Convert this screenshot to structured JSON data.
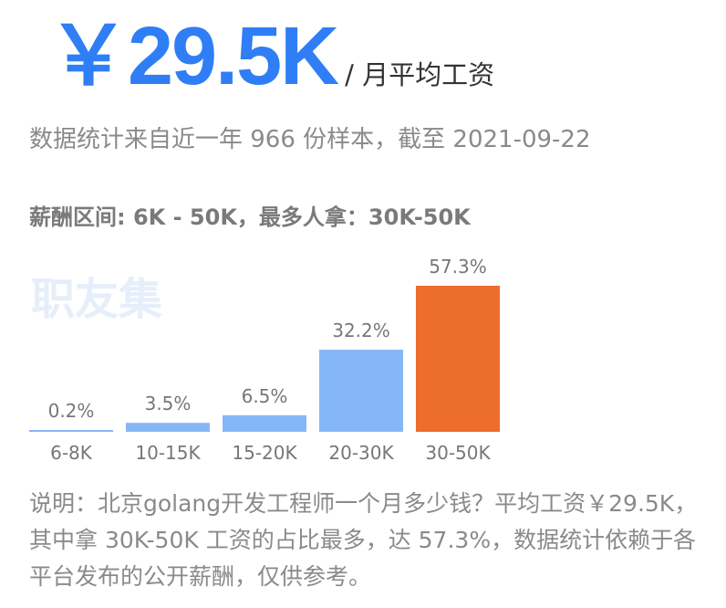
{
  "header": {
    "salary": "￥29.5K",
    "unit_label": "/ 月平均工资"
  },
  "meta_text": "数据统计来自近一年 966 份样本，截至 2021-09-22",
  "range_text": "薪酬区间: 6K - 50K，最多人拿：30K-50K",
  "watermark": "职友集",
  "description": "说明：北京golang开发工程师一个月多少钱？平均工资￥29.5K，其中拿 30K-50K 工资的占比最多，达 57.3%，数据统计依赖于各平台发布的公开薪酬，仅供参考。",
  "colors": {
    "salary": "#2f7ef5",
    "bar": "#85b6f8",
    "highlight_bar": "#ec6d2c",
    "label_text": "#777777"
  },
  "chart_data": {
    "type": "bar",
    "categories": [
      "6-8K",
      "10-15K",
      "15-20K",
      "20-30K",
      "30-50K"
    ],
    "values": [
      0.2,
      3.5,
      6.5,
      32.2,
      57.3
    ],
    "value_labels": [
      "0.2%",
      "3.5%",
      "6.5%",
      "32.2%",
      "57.3%"
    ],
    "highlight_category": "30-50K",
    "title": "",
    "xlabel": "",
    "ylabel": "",
    "ylim": [
      0,
      57.3
    ],
    "grid": false
  }
}
